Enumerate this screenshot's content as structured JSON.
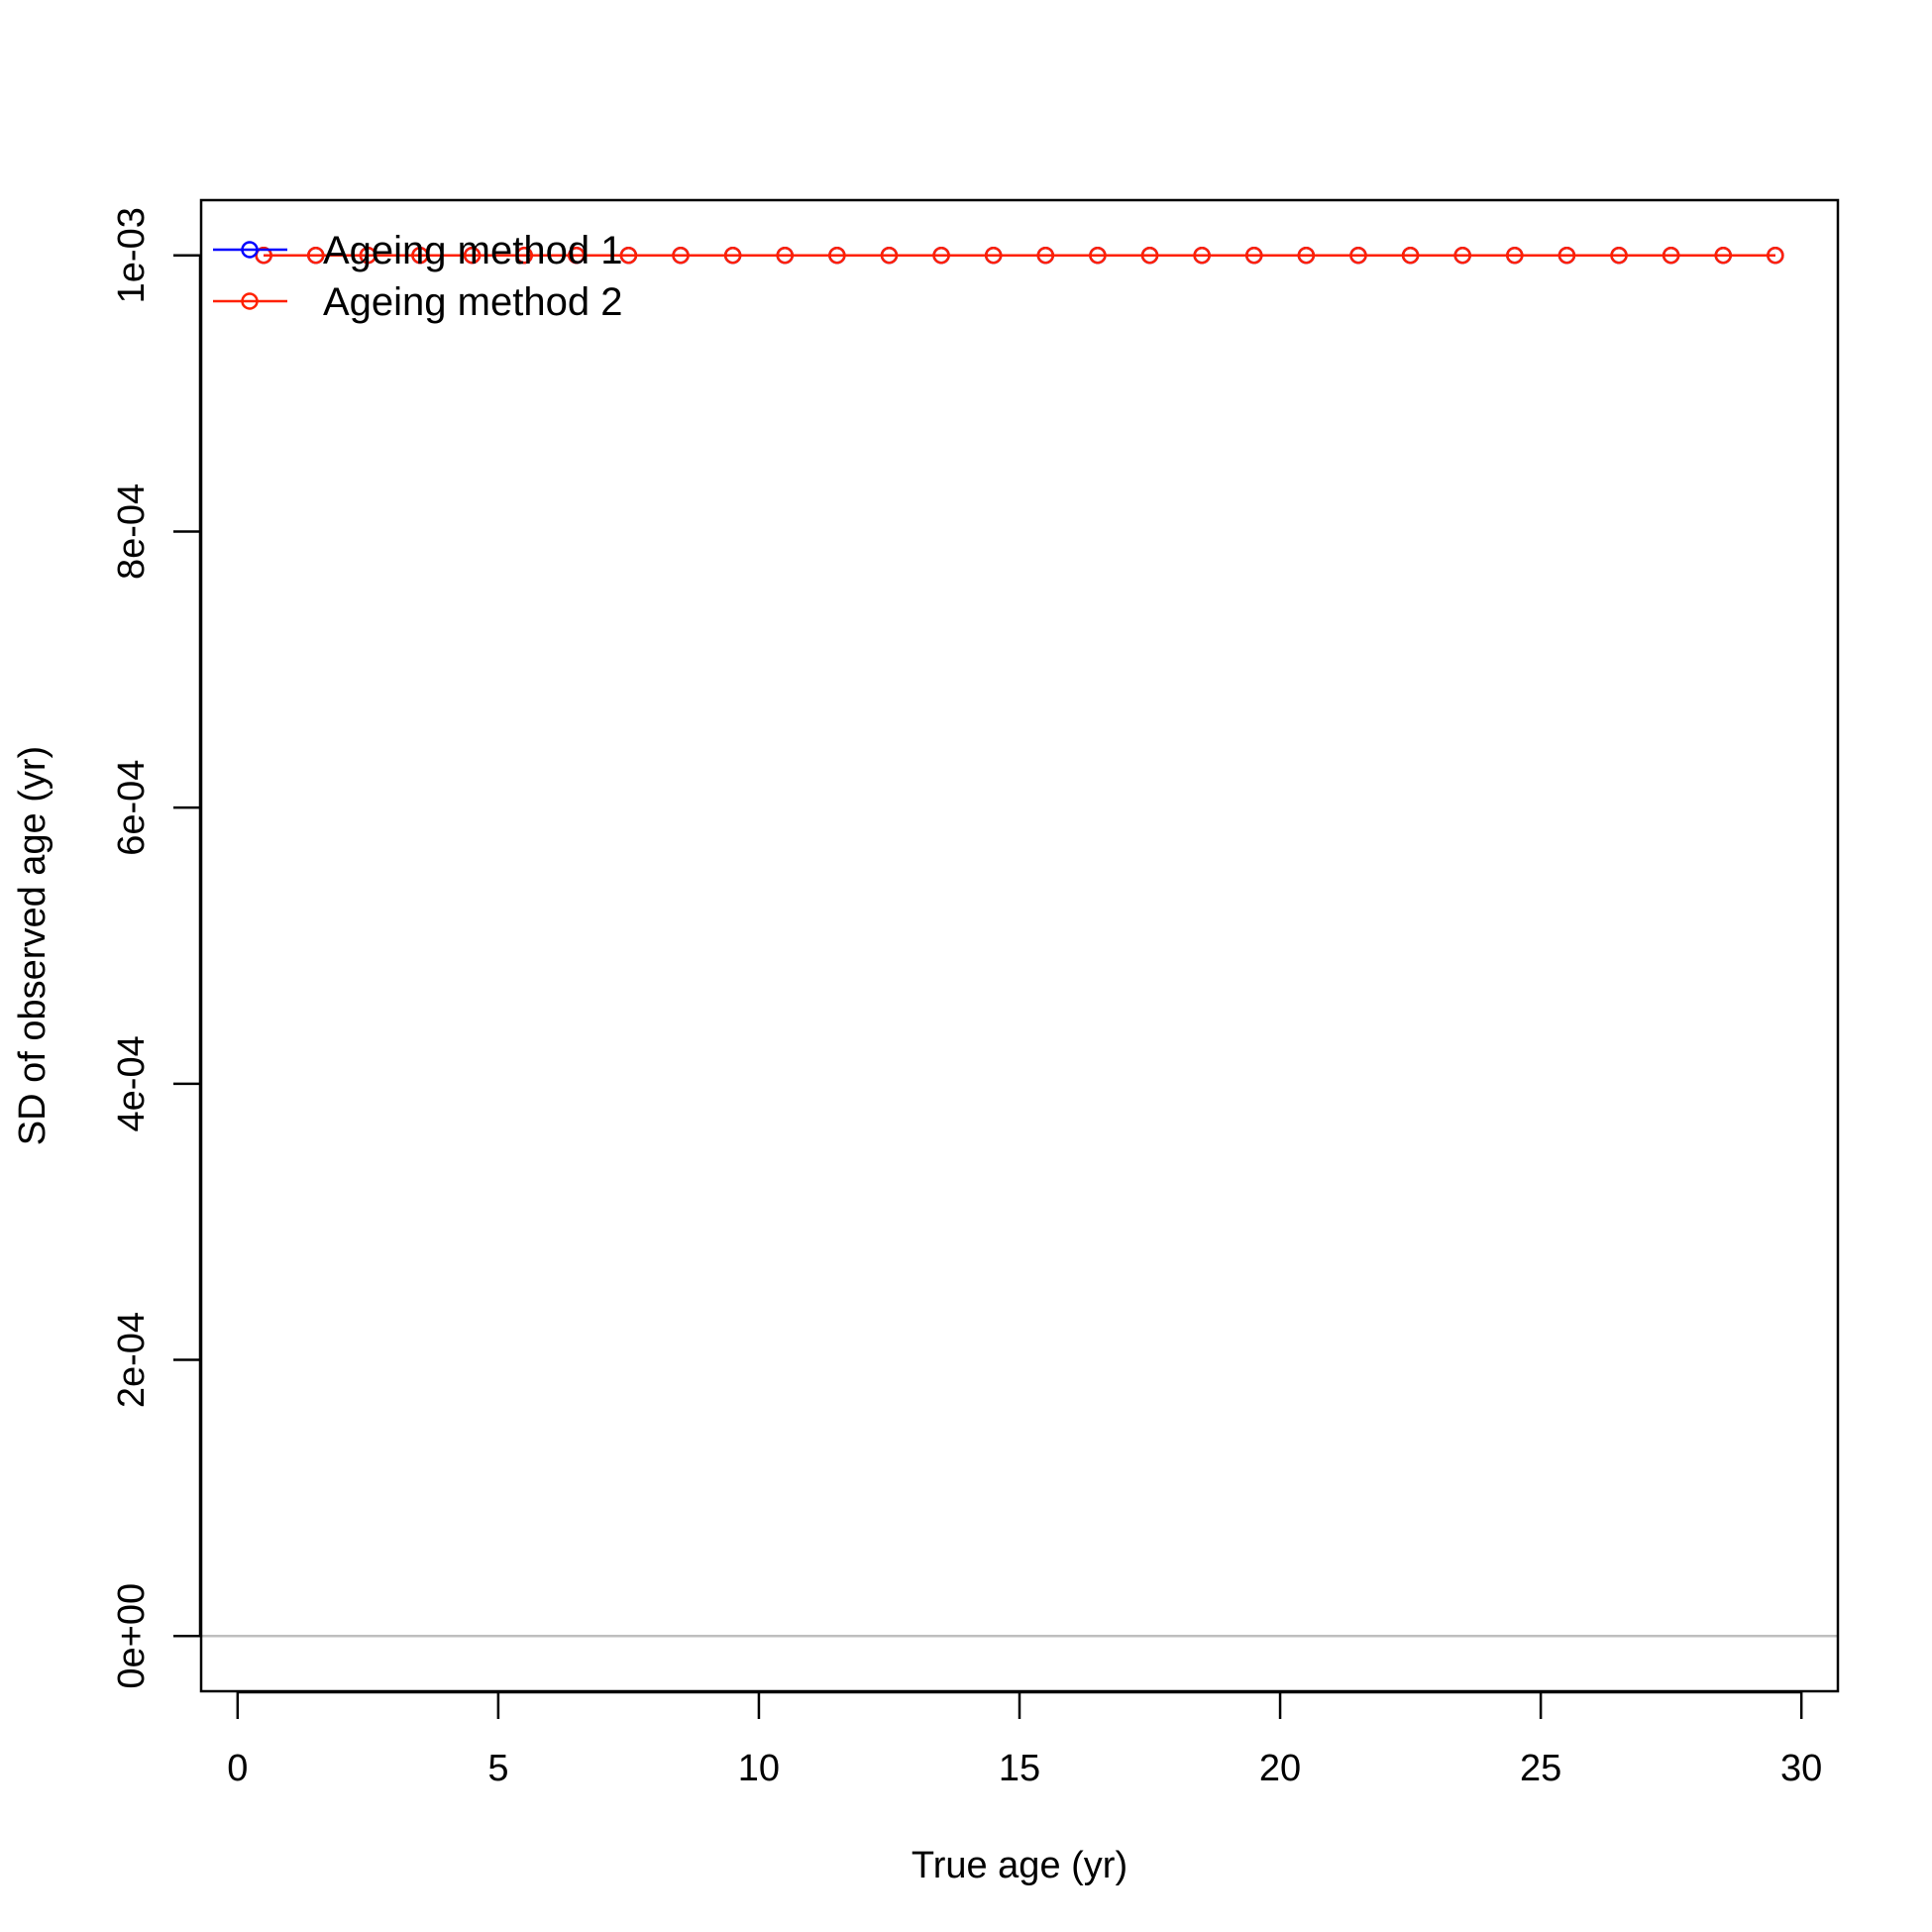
{
  "chart_data": {
    "type": "line",
    "xlabel": "True age (yr)",
    "ylabel": "SD of observed age (yr)",
    "xlim": [
      -0.7,
      30.7
    ],
    "ylim": [
      -4e-05,
      0.00104
    ],
    "x_ticks": [
      0,
      5,
      10,
      15,
      20,
      25,
      30
    ],
    "x_tick_labels": [
      "0",
      "5",
      "10",
      "15",
      "20",
      "25",
      "30"
    ],
    "y_ticks": [
      0,
      0.0002,
      0.0004,
      0.0006,
      0.0008,
      0.001
    ],
    "y_tick_labels": [
      "0e+00",
      "2e-04",
      "4e-04",
      "6e-04",
      "8e-04",
      "1e-03"
    ],
    "reference_line_y": 0,
    "grid": false,
    "legend_position": "top-left",
    "x": [
      0.5,
      1.5,
      2.5,
      3.5,
      4.5,
      5.5,
      6.5,
      7.5,
      8.5,
      9.5,
      10.5,
      11.5,
      12.5,
      13.5,
      14.5,
      15.5,
      16.5,
      17.5,
      18.5,
      19.5,
      20.5,
      21.5,
      22.5,
      23.5,
      24.5,
      25.5,
      26.5,
      27.5,
      28.5,
      29.5
    ],
    "series": [
      {
        "name": "Ageing method 1",
        "color": "#0000ff",
        "values": [
          0.001,
          0.001,
          0.001,
          0.001,
          0.001,
          0.001,
          0.001,
          0.001,
          0.001,
          0.001,
          0.001,
          0.001,
          0.001,
          0.001,
          0.001,
          0.001,
          0.001,
          0.001,
          0.001,
          0.001,
          0.001,
          0.001,
          0.001,
          0.001,
          0.001,
          0.001,
          0.001,
          0.001,
          0.001,
          0.001
        ]
      },
      {
        "name": "Ageing method 2",
        "color": "#ff2000",
        "values": [
          0.001,
          0.001,
          0.001,
          0.001,
          0.001,
          0.001,
          0.001,
          0.001,
          0.001,
          0.001,
          0.001,
          0.001,
          0.001,
          0.001,
          0.001,
          0.001,
          0.001,
          0.001,
          0.001,
          0.001,
          0.001,
          0.001,
          0.001,
          0.001,
          0.001,
          0.001,
          0.001,
          0.001,
          0.001,
          0.001
        ]
      }
    ],
    "reference_line_color": "#bebebe"
  }
}
